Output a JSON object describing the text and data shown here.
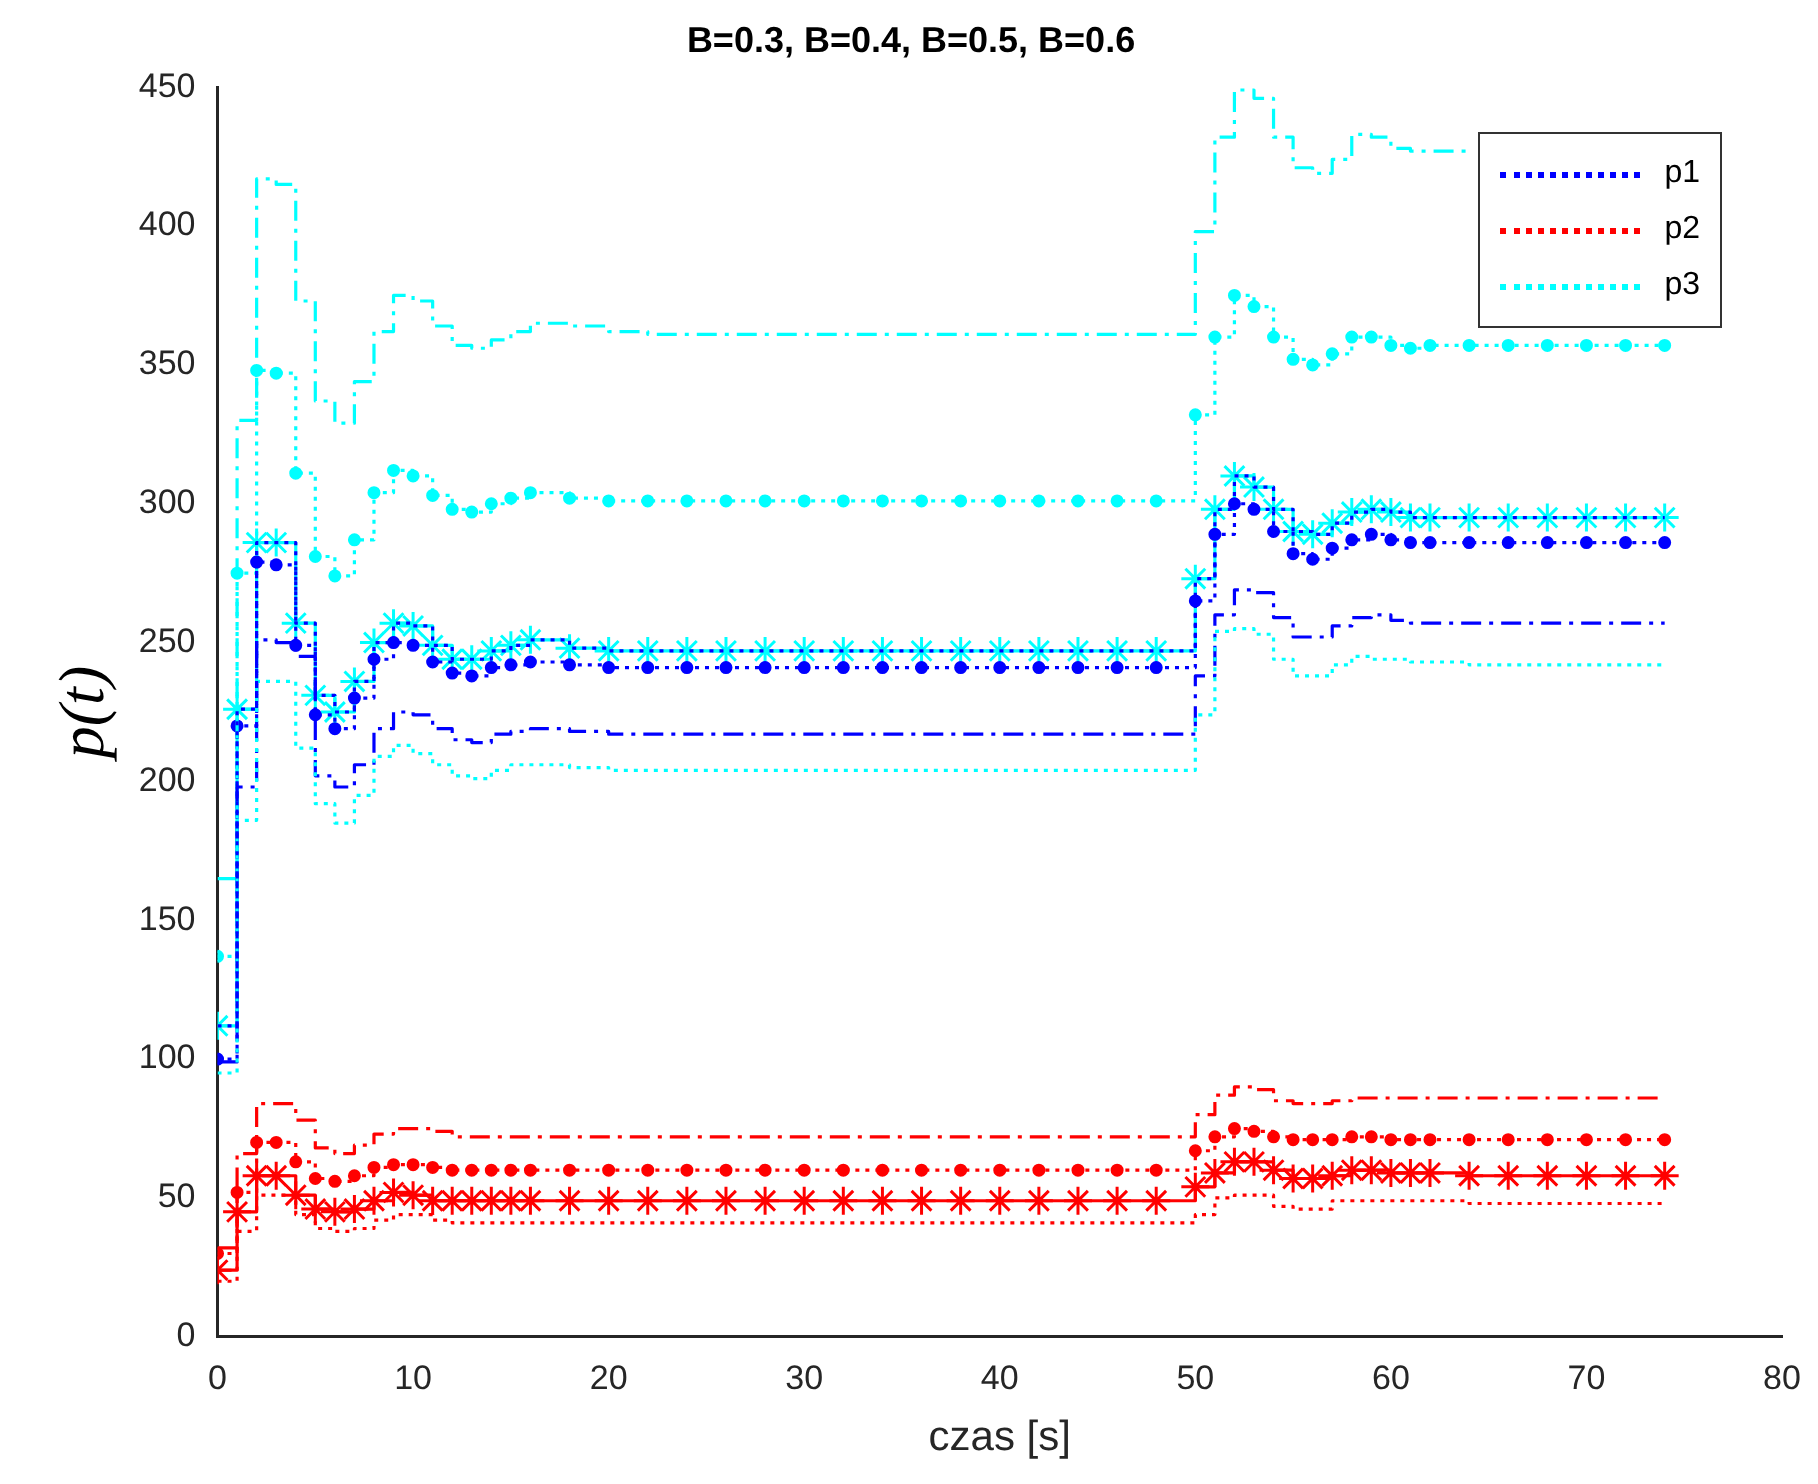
{
  "chart_data": {
    "type": "step",
    "title": "B=0.3, B=0.4, B=0.5, B=0.6",
    "xlabel": "czas [s]",
    "ylabel": "p(t)",
    "x": [
      0,
      1,
      2,
      3,
      4,
      5,
      6,
      7,
      8,
      9,
      10,
      11,
      12,
      13,
      14,
      15,
      16,
      18,
      20,
      22,
      24,
      26,
      28,
      30,
      32,
      34,
      36,
      38,
      40,
      42,
      44,
      46,
      48,
      50,
      51,
      52,
      53,
      54,
      55,
      56,
      57,
      58,
      59,
      60,
      61,
      62,
      64,
      66,
      68,
      70,
      72,
      74
    ],
    "xlim": [
      0,
      80
    ],
    "xticks": [
      0,
      10,
      20,
      30,
      40,
      50,
      60,
      70,
      80
    ],
    "ylim": [
      0,
      450
    ],
    "yticks": [
      0,
      50,
      100,
      150,
      200,
      250,
      300,
      350,
      400,
      450
    ],
    "legend": "top right",
    "grid": false,
    "series": [
      {
        "name": "p1",
        "color": "#0000ff",
        "line_style": "dotted",
        "marker": "none",
        "values": [
          112,
          226,
          286,
          286,
          257,
          231,
          225,
          236,
          250,
          257,
          256,
          249,
          244,
          244,
          247,
          249,
          251,
          248,
          247,
          247,
          247,
          247,
          247,
          247,
          247,
          247,
          247,
          247,
          247,
          247,
          247,
          247,
          247,
          273,
          298,
          310,
          306,
          298,
          290,
          289,
          293,
          297,
          298,
          297,
          295,
          295,
          295,
          295,
          295,
          295,
          295,
          295
        ]
      },
      {
        "name": "p2",
        "color": "#ff0000",
        "line_style": "dotted",
        "marker": "none",
        "values": [
          20,
          38,
          51,
          51,
          44,
          39,
          38,
          39,
          42,
          44,
          44,
          42,
          41,
          41,
          41,
          41,
          41,
          41,
          41,
          41,
          41,
          41,
          41,
          41,
          41,
          41,
          41,
          41,
          41,
          41,
          41,
          41,
          41,
          44,
          50,
          51,
          51,
          47,
          46,
          46,
          49,
          49,
          49,
          49,
          49,
          49,
          48,
          48,
          48,
          48,
          48,
          48
        ]
      },
      {
        "name": "p3",
        "color": "#00ffff",
        "line_style": "dotted",
        "marker": "none",
        "values": [
          95,
          186,
          236,
          236,
          212,
          192,
          185,
          195,
          209,
          213,
          210,
          206,
          202,
          201,
          204,
          206,
          206,
          205,
          204,
          204,
          204,
          204,
          204,
          204,
          204,
          204,
          204,
          204,
          204,
          204,
          204,
          204,
          204,
          224,
          254,
          255,
          253,
          244,
          238,
          238,
          242,
          245,
          244,
          244,
          243,
          243,
          242,
          242,
          242,
          242,
          242,
          242
        ]
      },
      {
        "color": "#0000ff",
        "line_style": "dashed",
        "marker": "none",
        "values": [
          99,
          198,
          251,
          250,
          245,
          202,
          198,
          206,
          219,
          225,
          224,
          219,
          215,
          214,
          217,
          218,
          219,
          218,
          217,
          217,
          217,
          217,
          217,
          217,
          217,
          217,
          217,
          217,
          217,
          217,
          217,
          217,
          217,
          238,
          260,
          269,
          268,
          259,
          252,
          252,
          256,
          259,
          260,
          258,
          257,
          257,
          257,
          257,
          257,
          257,
          257,
          257
        ]
      },
      {
        "color": "#ff0000",
        "line_style": "dashed",
        "marker": "none",
        "values": [
          32,
          66,
          84,
          84,
          78,
          68,
          66,
          69,
          73,
          75,
          75,
          74,
          72,
          72,
          72,
          72,
          72,
          72,
          72,
          72,
          72,
          72,
          72,
          72,
          72,
          72,
          72,
          72,
          72,
          72,
          72,
          72,
          72,
          80,
          87,
          90,
          89,
          85,
          84,
          84,
          85,
          86,
          86,
          86,
          86,
          86,
          86,
          86,
          86,
          86,
          86,
          86
        ]
      },
      {
        "color": "#00ffff",
        "line_style": "dashed",
        "marker": "none",
        "values": [
          165,
          330,
          417,
          415,
          373,
          337,
          329,
          344,
          362,
          375,
          373,
          364,
          357,
          356,
          359,
          362,
          365,
          364,
          362,
          361,
          361,
          361,
          361,
          361,
          361,
          361,
          361,
          361,
          361,
          361,
          361,
          361,
          361,
          398,
          432,
          449,
          446,
          432,
          421,
          419,
          424,
          433,
          432,
          428,
          427,
          427,
          427,
          null,
          null,
          null,
          null,
          null
        ]
      },
      {
        "color": "#0000ff",
        "line_style": "dotted",
        "marker": "circle",
        "values": [
          100,
          220,
          279,
          278,
          249,
          224,
          219,
          230,
          244,
          250,
          249,
          243,
          239,
          238,
          241,
          242,
          243,
          242,
          241,
          241,
          241,
          241,
          241,
          241,
          241,
          241,
          241,
          241,
          241,
          241,
          241,
          241,
          241,
          265,
          289,
          300,
          298,
          290,
          282,
          280,
          284,
          287,
          289,
          287,
          286,
          286,
          286,
          286,
          286,
          286,
          286,
          286
        ]
      },
      {
        "color": "#ff0000",
        "line_style": "dotted",
        "marker": "circle",
        "values": [
          30,
          52,
          70,
          70,
          63,
          57,
          56,
          58,
          61,
          62,
          62,
          61,
          60,
          60,
          60,
          60,
          60,
          60,
          60,
          60,
          60,
          60,
          60,
          60,
          60,
          60,
          60,
          60,
          60,
          60,
          60,
          60,
          60,
          67,
          72,
          75,
          74,
          72,
          71,
          71,
          71,
          72,
          72,
          71,
          71,
          71,
          71,
          71,
          71,
          71,
          71,
          71
        ]
      },
      {
        "color": "#00ffff",
        "line_style": "dotted",
        "marker": "circle",
        "values": [
          137,
          275,
          348,
          347,
          311,
          281,
          274,
          287,
          304,
          312,
          310,
          303,
          298,
          297,
          300,
          302,
          304,
          302,
          301,
          301,
          301,
          301,
          301,
          301,
          301,
          301,
          301,
          301,
          301,
          301,
          301,
          301,
          301,
          332,
          360,
          375,
          371,
          360,
          352,
          350,
          354,
          360,
          360,
          357,
          356,
          357,
          357,
          357,
          357,
          357,
          357,
          357
        ]
      },
      {
        "color": "#ff0000",
        "line_style": "solid",
        "marker": "cross",
        "values": [
          24,
          45,
          58,
          58,
          51,
          46,
          45,
          46,
          49,
          52,
          51,
          49,
          49,
          49,
          49,
          49,
          49,
          49,
          49,
          49,
          49,
          49,
          49,
          49,
          49,
          49,
          49,
          49,
          49,
          49,
          49,
          49,
          49,
          54,
          59,
          63,
          63,
          60,
          57,
          57,
          58,
          60,
          60,
          59,
          59,
          59,
          58,
          58,
          58,
          58,
          58,
          58
        ]
      },
      {
        "color": "#00ffff",
        "line_style": "solid",
        "marker": "cross",
        "values": [
          112,
          226,
          286,
          286,
          257,
          231,
          225,
          236,
          250,
          257,
          256,
          249,
          244,
          244,
          247,
          249,
          251,
          248,
          247,
          247,
          247,
          247,
          247,
          247,
          247,
          247,
          247,
          247,
          247,
          247,
          247,
          247,
          247,
          273,
          298,
          310,
          306,
          298,
          290,
          289,
          293,
          297,
          298,
          297,
          295,
          295,
          295,
          295,
          295,
          295,
          295,
          295
        ]
      }
    ]
  }
}
